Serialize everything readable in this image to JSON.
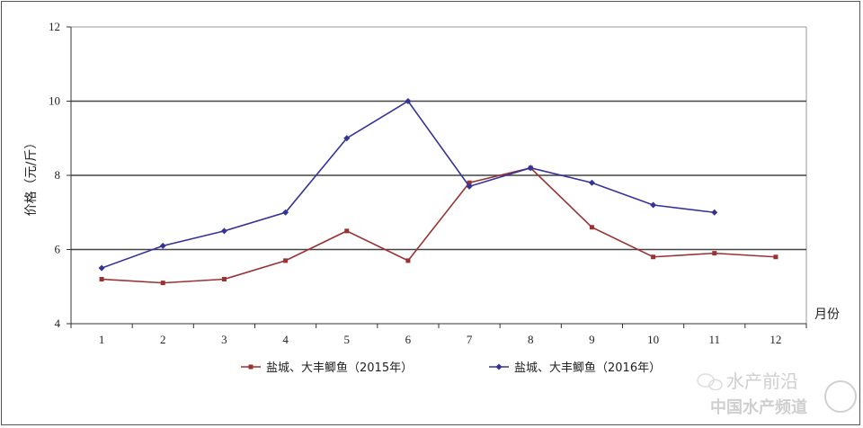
{
  "chart_data": {
    "type": "line",
    "title": "",
    "xlabel": "月份",
    "ylabel": "价格（元/斤）",
    "categories": [
      "1",
      "2",
      "3",
      "4",
      "5",
      "6",
      "7",
      "8",
      "9",
      "10",
      "11",
      "12"
    ],
    "ylim": [
      4,
      12
    ],
    "yticks": [
      4,
      6,
      8,
      10,
      12
    ],
    "grid": "horizontal lines at 6, 8, 10",
    "legend_position": "bottom",
    "series": [
      {
        "name": "盐城、大丰鲫鱼（2015年）",
        "color": "#993333",
        "marker": "square",
        "values": [
          5.2,
          5.1,
          5.2,
          5.7,
          6.5,
          5.7,
          7.8,
          8.2,
          6.6,
          5.8,
          5.9,
          5.8
        ]
      },
      {
        "name": "盐城、大丰鲫鱼（2016年）",
        "color": "#333399",
        "marker": "diamond",
        "values": [
          5.5,
          6.1,
          6.5,
          7.0,
          9.0,
          10.0,
          7.7,
          8.2,
          7.8,
          7.2,
          7.0,
          null
        ]
      }
    ]
  },
  "watermark": {
    "line1": "水产前沿",
    "line2": "中国水产频道"
  }
}
